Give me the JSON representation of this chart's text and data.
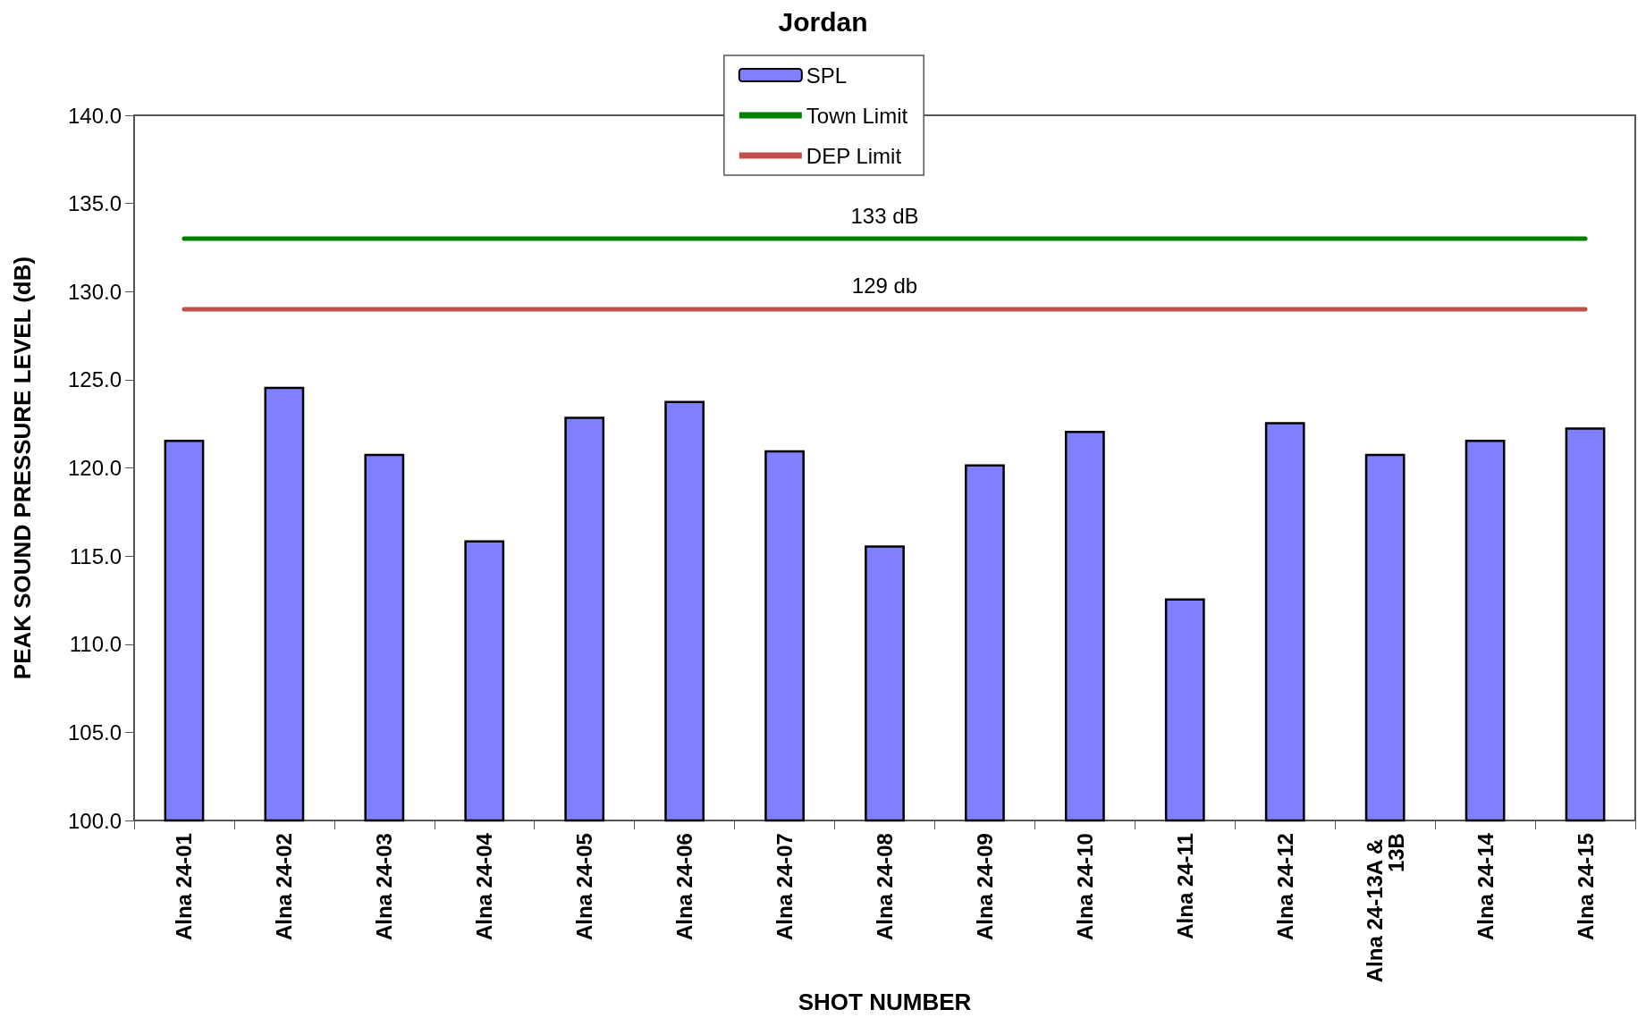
{
  "chart_data": {
    "type": "bar",
    "title": "Jordan",
    "xlabel": "SHOT NUMBER",
    "ylabel": "PEAK SOUND PRESSURE LEVEL (dB)",
    "categories": [
      "Alna 24-01",
      "Alna 24-02",
      "Alna 24-03",
      "Alna 24-04",
      "Alna 24-05",
      "Alna 24-06",
      "Alna 24-07",
      "Alna 24-08",
      "Alna 24-09",
      "Alna 24-10",
      "Alna 24-11",
      "Alna 24-12",
      "Alna 24-13A & 13B",
      "Alna 24-14",
      "Alna 24-15"
    ],
    "series": [
      {
        "name": "SPL",
        "color": "#8080ff",
        "values": [
          121.6,
          124.6,
          120.8,
          115.9,
          122.9,
          123.8,
          121.0,
          115.6,
          120.2,
          122.1,
          112.6,
          122.6,
          120.8,
          121.6,
          122.3
        ]
      },
      {
        "name": "Town Limit",
        "type": "line",
        "color": "#008000",
        "values": [
          133,
          133,
          133,
          133,
          133,
          133,
          133,
          133,
          133,
          133,
          133,
          133,
          133,
          133,
          133
        ]
      },
      {
        "name": "DEP Limit",
        "type": "line",
        "color": "#c0504d",
        "values": [
          129,
          129,
          129,
          129,
          129,
          129,
          129,
          129,
          129,
          129,
          129,
          129,
          129,
          129,
          129
        ]
      }
    ],
    "ylim": [
      100,
      140
    ],
    "yticks": [
      {
        "value": 100,
        "label": "100.0"
      },
      {
        "value": 105,
        "label": "105.0"
      },
      {
        "value": 110,
        "label": "110.0"
      },
      {
        "value": 115,
        "label": "115.0"
      },
      {
        "value": 120,
        "label": "120.0"
      },
      {
        "value": 125,
        "label": "125.0"
      },
      {
        "value": 130,
        "label": "130.0"
      },
      {
        "value": 135,
        "label": "135.0"
      },
      {
        "value": 140,
        "label": "140.0"
      }
    ],
    "annotations": [
      {
        "text": "133 dB",
        "x": "Alna 24-08",
        "y": 133
      },
      {
        "text": "129 db",
        "x": "Alna 24-08",
        "y": 129
      }
    ],
    "grid": false,
    "legend": "top",
    "marker": "none",
    "line_style": "solid"
  }
}
